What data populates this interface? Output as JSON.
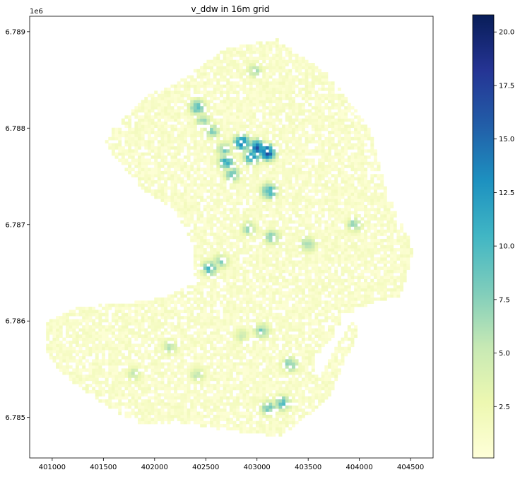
{
  "chart_data": {
    "type": "heatmap",
    "title": "v_ddw in 16m grid",
    "xlabel": "",
    "ylabel": "",
    "y_offset_label": "1e6",
    "xlim": [
      400780,
      404720
    ],
    "ylim": [
      6.78458,
      6.78916
    ],
    "x_ticks": [
      401000,
      401500,
      402000,
      402500,
      403000,
      403500,
      404000,
      404500
    ],
    "y_ticks": [
      6.785,
      6.786,
      6.787,
      6.788,
      6.789
    ],
    "grid": false,
    "colorbar": {
      "label": "",
      "range": [
        0.1,
        20.8
      ],
      "ticks": [
        2.5,
        5.0,
        7.5,
        10.0,
        12.5,
        15.0,
        17.5,
        20.0
      ],
      "colormap": "YlGnBu",
      "colors": [
        "#ffffd9",
        "#edf8b1",
        "#c7e9b4",
        "#7fcdbb",
        "#41b6c4",
        "#1d91c0",
        "#225ea8",
        "#253494",
        "#081d58"
      ]
    },
    "cell_size_m": 16,
    "region_outline_x": [
      401500,
      401600,
      401950,
      402200,
      402700,
      403200,
      403700,
      404100,
      404280,
      404530,
      404400,
      404150,
      403850,
      403750,
      403550,
      403600,
      403920,
      404000,
      403800,
      403700,
      403350,
      403200,
      402500,
      402200,
      401900,
      401550,
      401100,
      400930,
      400950,
      401250,
      401700,
      402100,
      402400,
      402380,
      402200,
      401900
    ],
    "region_outline_y": [
      6.78785,
      6.788,
      6.78835,
      6.78845,
      6.78883,
      6.78892,
      6.78855,
      6.788,
      6.7873,
      6.78675,
      6.78625,
      6.7862,
      6.78605,
      6.78585,
      6.7856,
      6.7854,
      6.786,
      6.7859,
      6.78545,
      6.7852,
      6.7849,
      6.7848,
      6.7849,
      6.78495,
      6.78492,
      6.7851,
      6.78545,
      6.7857,
      6.786,
      6.78615,
      6.78618,
      6.78625,
      6.7864,
      6.7868,
      6.78715,
      6.78735
    ],
    "background_level": 1.0,
    "hotspots": [
      {
        "x": 402850,
        "y": 6.78785,
        "value": 17.0
      },
      {
        "x": 403000,
        "y": 6.7878,
        "value": 18.5
      },
      {
        "x": 403100,
        "y": 6.78775,
        "value": 20.0
      },
      {
        "x": 402950,
        "y": 6.7877,
        "value": 14.0
      },
      {
        "x": 402700,
        "y": 6.78765,
        "value": 12.0
      },
      {
        "x": 402420,
        "y": 6.78822,
        "value": 11.0
      },
      {
        "x": 402560,
        "y": 6.78797,
        "value": 8.5
      },
      {
        "x": 402470,
        "y": 6.78808,
        "value": 7.5
      },
      {
        "x": 402680,
        "y": 6.78778,
        "value": 9.0
      },
      {
        "x": 402540,
        "y": 6.78655,
        "value": 11.0
      },
      {
        "x": 402650,
        "y": 6.78662,
        "value": 8.0
      },
      {
        "x": 402920,
        "y": 6.78696,
        "value": 8.0
      },
      {
        "x": 403150,
        "y": 6.78687,
        "value": 9.0
      },
      {
        "x": 403050,
        "y": 6.7859,
        "value": 9.0
      },
      {
        "x": 403250,
        "y": 6.78515,
        "value": 11.0
      },
      {
        "x": 403110,
        "y": 6.7851,
        "value": 10.0
      },
      {
        "x": 403320,
        "y": 6.78555,
        "value": 9.5
      },
      {
        "x": 403500,
        "y": 6.7868,
        "value": 8.5
      },
      {
        "x": 402150,
        "y": 6.78573,
        "value": 6.5
      },
      {
        "x": 401800,
        "y": 6.78545,
        "value": 6.0
      },
      {
        "x": 402420,
        "y": 6.78545,
        "value": 6.5
      },
      {
        "x": 402850,
        "y": 6.78585,
        "value": 5.5
      },
      {
        "x": 403950,
        "y": 6.787,
        "value": 8.0
      },
      {
        "x": 402980,
        "y": 6.7886,
        "value": 7.0
      },
      {
        "x": 403120,
        "y": 6.78735,
        "value": 13.0
      },
      {
        "x": 402760,
        "y": 6.78752,
        "value": 10.0
      }
    ]
  }
}
